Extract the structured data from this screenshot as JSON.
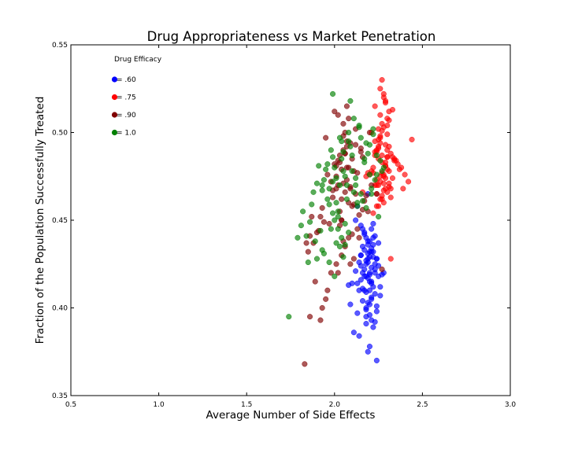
{
  "chart_data": {
    "type": "scatter",
    "title": "Drug Appropriateness vs Market Penetration",
    "xlabel": "Average Number of Side Effects",
    "ylabel": "Fraction of the Population Successfully Treated",
    "xlim": [
      0.5,
      3.0
    ],
    "ylim": [
      0.35,
      0.55
    ],
    "xticks": [
      "0.5",
      "1.0",
      "1.5",
      "2.0",
      "2.5",
      "3.0"
    ],
    "yticks": [
      "0.35",
      "0.40",
      "0.45",
      "0.50",
      "0.55"
    ],
    "grid": false,
    "legend_title": "Drug Efficacy",
    "legend_placement": "top-left",
    "series": [
      {
        "name": "= .60",
        "color": "#0000ff",
        "x": [
          2.15,
          2.18,
          2.2,
          2.22,
          2.17,
          2.19,
          2.21,
          2.16,
          2.23,
          2.2,
          2.18,
          2.22,
          2.14,
          2.19,
          2.21,
          2.24,
          2.17,
          2.2,
          2.13,
          2.25,
          2.18,
          2.21,
          2.16,
          2.23,
          2.19,
          2.2,
          2.12,
          2.26,
          2.18,
          2.22,
          2.15,
          2.19,
          2.21,
          2.17,
          2.24,
          2.2,
          2.14,
          2.18,
          2.22,
          2.16,
          2.23,
          2.19,
          2.21,
          2.1,
          2.25,
          2.18,
          2.2,
          2.15,
          2.22,
          2.17,
          2.19,
          2.27,
          2.13,
          2.21,
          2.16,
          2.24,
          2.2,
          2.18,
          2.11,
          2.23,
          2.19,
          2.21,
          2.15,
          2.22,
          2.17,
          2.26,
          2.14,
          2.2,
          2.18,
          2.23,
          2.08,
          2.19,
          2.21,
          2.16,
          2.24,
          2.2,
          2.12,
          2.25,
          2.18,
          2.22,
          2.17,
          2.09,
          2.2,
          2.23,
          2.15,
          2.21,
          2.19,
          2.28,
          2.13,
          2.24
        ],
        "y": [
          0.43,
          0.425,
          0.42,
          0.432,
          0.418,
          0.428,
          0.415,
          0.435,
          0.422,
          0.41,
          0.44,
          0.412,
          0.426,
          0.436,
          0.405,
          0.428,
          0.442,
          0.419,
          0.414,
          0.424,
          0.4,
          0.432,
          0.445,
          0.408,
          0.417,
          0.438,
          0.421,
          0.412,
          0.395,
          0.429,
          0.447,
          0.403,
          0.423,
          0.433,
          0.398,
          0.415,
          0.41,
          0.427,
          0.44,
          0.42,
          0.392,
          0.431,
          0.406,
          0.414,
          0.437,
          0.418,
          0.402,
          0.424,
          0.389,
          0.443,
          0.426,
          0.419,
          0.397,
          0.434,
          0.411,
          0.401,
          0.429,
          0.409,
          0.386,
          0.425,
          0.438,
          0.393,
          0.416,
          0.448,
          0.422,
          0.407,
          0.384,
          0.432,
          0.399,
          0.42,
          0.413,
          0.375,
          0.445,
          0.404,
          0.428,
          0.396,
          0.45,
          0.418,
          0.391,
          0.436,
          0.41,
          0.402,
          0.378,
          0.441,
          0.43,
          0.414,
          0.465,
          0.42,
          0.458,
          0.37
        ]
      },
      {
        "name": "= .75",
        "color": "#ff0000",
        "x": [
          2.22,
          2.25,
          2.28,
          2.3,
          2.24,
          2.27,
          2.31,
          2.23,
          2.26,
          2.29,
          2.32,
          2.25,
          2.28,
          2.21,
          2.3,
          2.33,
          2.26,
          2.24,
          2.29,
          2.27,
          2.31,
          2.23,
          2.35,
          2.28,
          2.25,
          2.3,
          2.26,
          2.22,
          2.32,
          2.27,
          2.29,
          2.24,
          2.36,
          2.28,
          2.31,
          2.25,
          2.2,
          2.3,
          2.27,
          2.33,
          2.23,
          2.29,
          2.26,
          2.38,
          2.28,
          2.24,
          2.31,
          2.21,
          2.3,
          2.27,
          2.34,
          2.25,
          2.29,
          2.4,
          2.26,
          2.32,
          2.23,
          2.28,
          2.42,
          2.3,
          2.25,
          2.27,
          2.18,
          2.31,
          2.24,
          2.29,
          2.37,
          2.26,
          2.44,
          2.28,
          2.22,
          2.3,
          2.33,
          2.27,
          2.25,
          2.39,
          2.29,
          2.31,
          2.26,
          2.19,
          2.28,
          2.34,
          2.24,
          2.3,
          2.16,
          2.27,
          2.32,
          2.23,
          2.29,
          2.26
        ],
        "y": [
          0.48,
          0.485,
          0.475,
          0.49,
          0.47,
          0.487,
          0.478,
          0.495,
          0.472,
          0.483,
          0.468,
          0.492,
          0.476,
          0.5,
          0.486,
          0.474,
          0.498,
          0.465,
          0.481,
          0.505,
          0.471,
          0.489,
          0.484,
          0.467,
          0.496,
          0.479,
          0.51,
          0.477,
          0.488,
          0.462,
          0.493,
          0.473,
          0.482,
          0.503,
          0.469,
          0.491,
          0.476,
          0.508,
          0.464,
          0.486,
          0.515,
          0.474,
          0.497,
          0.48,
          0.46,
          0.489,
          0.512,
          0.478,
          0.466,
          0.501,
          0.485,
          0.47,
          0.518,
          0.476,
          0.494,
          0.463,
          0.487,
          0.52,
          0.472,
          0.499,
          0.458,
          0.483,
          0.475,
          0.507,
          0.49,
          0.468,
          0.479,
          0.525,
          0.496,
          0.471,
          0.454,
          0.486,
          0.513,
          0.477,
          0.502,
          0.468,
          0.481,
          0.492,
          0.462,
          0.477,
          0.522,
          0.484,
          0.458,
          0.504,
          0.466,
          0.53,
          0.428,
          0.47,
          0.517,
          0.475
        ]
      },
      {
        "name": "= .90",
        "color": "#800000",
        "x": [
          2.05,
          2.08,
          2.02,
          2.1,
          2.04,
          2.07,
          2.01,
          2.09,
          2.06,
          2.03,
          2.11,
          2.0,
          2.08,
          2.05,
          1.98,
          2.12,
          2.04,
          2.07,
          2.02,
          2.1,
          1.96,
          2.06,
          2.13,
          2.03,
          2.09,
          1.99,
          2.05,
          2.14,
          2.01,
          2.08,
          1.95,
          2.06,
          2.11,
          2.04,
          1.97,
          2.15,
          2.02,
          2.1,
          2.07,
          1.93,
          2.16,
          2.05,
          1.99,
          2.12,
          2.03,
          1.92,
          2.09,
          2.06,
          2.17,
          2.0,
          1.9,
          2.13,
          2.04,
          2.08,
          1.94,
          2.18,
          1.88,
          2.07,
          2.01,
          2.15,
          1.91,
          2.11,
          2.05,
          1.87,
          2.2,
          1.98,
          2.03,
          1.86,
          2.16,
          2.09,
          1.85,
          2.06,
          1.96,
          2.21,
          1.84,
          2.02,
          2.12,
          1.89,
          2.24,
          1.93,
          2.14,
          1.95,
          2.27,
          1.86,
          2.07,
          2.19,
          1.92,
          2.01,
          2.04,
          1.83
        ],
        "y": [
          0.49,
          0.48,
          0.47,
          0.485,
          0.462,
          0.495,
          0.475,
          0.468,
          0.488,
          0.455,
          0.478,
          0.482,
          0.46,
          0.498,
          0.472,
          0.465,
          0.45,
          0.492,
          0.484,
          0.458,
          0.476,
          0.5,
          0.445,
          0.487,
          0.469,
          0.463,
          0.505,
          0.453,
          0.481,
          0.44,
          0.497,
          0.466,
          0.459,
          0.479,
          0.448,
          0.491,
          0.51,
          0.442,
          0.473,
          0.457,
          0.486,
          0.438,
          0.467,
          0.502,
          0.447,
          0.452,
          0.494,
          0.435,
          0.461,
          0.512,
          0.443,
          0.477,
          0.43,
          0.508,
          0.449,
          0.464,
          0.437,
          0.515,
          0.425,
          0.489,
          0.444,
          0.428,
          0.471,
          0.452,
          0.5,
          0.42,
          0.483,
          0.441,
          0.456,
          0.425,
          0.432,
          0.488,
          0.41,
          0.47,
          0.437,
          0.42,
          0.493,
          0.415,
          0.465,
          0.4,
          0.44,
          0.405,
          0.422,
          0.395,
          0.48,
          0.455,
          0.393,
          0.468,
          0.45,
          0.368
        ]
      },
      {
        "name": "= 1.0",
        "color": "#008000",
        "x": [
          2.0,
          2.03,
          1.98,
          2.06,
          2.01,
          2.04,
          1.97,
          2.08,
          2.02,
          2.05,
          1.99,
          2.1,
          2.0,
          2.07,
          1.96,
          2.03,
          2.11,
          1.98,
          2.05,
          2.01,
          2.13,
          1.95,
          2.08,
          2.04,
          2.12,
          1.99,
          2.15,
          2.02,
          1.94,
          2.09,
          2.06,
          2.17,
          1.97,
          2.14,
          2.01,
          1.93,
          2.1,
          2.18,
          2.04,
          1.92,
          2.07,
          2.19,
          2.16,
          1.91,
          2.03,
          2.2,
          1.99,
          2.21,
          1.9,
          2.08,
          2.22,
          1.96,
          2.24,
          1.89,
          2.12,
          2.25,
          1.94,
          2.18,
          2.05,
          1.88,
          2.26,
          2.02,
          2.14,
          1.87,
          2.27,
          1.97,
          2.21,
          1.86,
          2.06,
          2.15,
          1.84,
          2.23,
          1.93,
          1.82,
          2.11,
          1.81,
          2.17,
          1.9,
          1.79,
          2.2,
          1.74,
          2.28,
          1.93,
          1.85,
          2.09,
          2.0,
          2.13,
          1.99,
          2.24,
          2.22
        ],
        "y": [
          0.48,
          0.47,
          0.49,
          0.475,
          0.46,
          0.485,
          0.468,
          0.495,
          0.455,
          0.478,
          0.472,
          0.487,
          0.45,
          0.462,
          0.482,
          0.497,
          0.466,
          0.445,
          0.489,
          0.474,
          0.458,
          0.479,
          0.5,
          0.44,
          0.47,
          0.486,
          0.465,
          0.452,
          0.473,
          0.492,
          0.448,
          0.483,
          0.459,
          0.503,
          0.437,
          0.467,
          0.478,
          0.457,
          0.495,
          0.444,
          0.47,
          0.488,
          0.461,
          0.481,
          0.435,
          0.476,
          0.454,
          0.465,
          0.471,
          0.443,
          0.499,
          0.462,
          0.487,
          0.438,
          0.474,
          0.452,
          0.431,
          0.494,
          0.429,
          0.466,
          0.484,
          0.445,
          0.504,
          0.459,
          0.478,
          0.426,
          0.468,
          0.449,
          0.436,
          0.497,
          0.441,
          0.473,
          0.433,
          0.455,
          0.508,
          0.447,
          0.485,
          0.428,
          0.44,
          0.493,
          0.395,
          0.48,
          0.47,
          0.426,
          0.518,
          0.418,
          0.46,
          0.522,
          0.476,
          0.502
        ]
      }
    ]
  }
}
